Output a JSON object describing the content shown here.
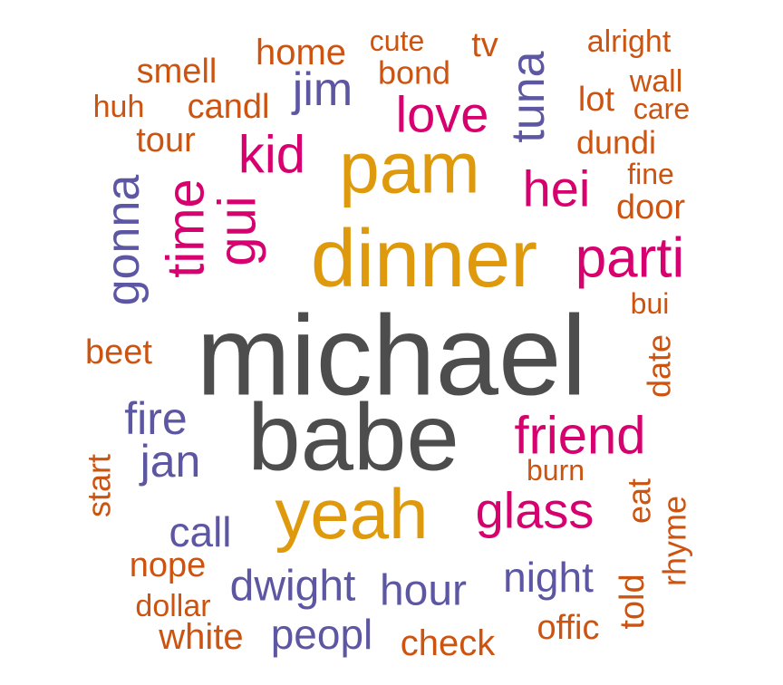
{
  "palette": {
    "grey": "#4d4d4d",
    "gold": "#de9a0c",
    "magenta": "#d6006f",
    "purple": "#5d57a3",
    "orange": "#cc5410"
  },
  "words": [
    {
      "text": "michael",
      "color": "grey"
    },
    {
      "text": "babe",
      "color": "grey"
    },
    {
      "text": "dinner",
      "color": "gold"
    },
    {
      "text": "pam",
      "color": "gold"
    },
    {
      "text": "yeah",
      "color": "gold"
    },
    {
      "text": "friend",
      "color": "magenta"
    },
    {
      "text": "glass",
      "color": "magenta"
    },
    {
      "text": "parti",
      "color": "magenta"
    },
    {
      "text": "love",
      "color": "magenta"
    },
    {
      "text": "hei",
      "color": "magenta"
    },
    {
      "text": "kid",
      "color": "magenta"
    },
    {
      "text": "gui",
      "color": "magenta"
    },
    {
      "text": "time",
      "color": "magenta"
    },
    {
      "text": "tuna",
      "color": "purple"
    },
    {
      "text": "jim",
      "color": "purple"
    },
    {
      "text": "gonna",
      "color": "purple"
    },
    {
      "text": "fire",
      "color": "purple"
    },
    {
      "text": "jan",
      "color": "purple"
    },
    {
      "text": "call",
      "color": "purple"
    },
    {
      "text": "dwight",
      "color": "purple"
    },
    {
      "text": "hour",
      "color": "purple"
    },
    {
      "text": "night",
      "color": "purple"
    },
    {
      "text": "peopl",
      "color": "purple"
    },
    {
      "text": "home",
      "color": "orange"
    },
    {
      "text": "cute",
      "color": "orange"
    },
    {
      "text": "tv",
      "color": "orange"
    },
    {
      "text": "alright",
      "color": "orange"
    },
    {
      "text": "smell",
      "color": "orange"
    },
    {
      "text": "bond",
      "color": "orange"
    },
    {
      "text": "wall",
      "color": "orange"
    },
    {
      "text": "lot",
      "color": "orange"
    },
    {
      "text": "huh",
      "color": "orange"
    },
    {
      "text": "candl",
      "color": "orange"
    },
    {
      "text": "care",
      "color": "orange"
    },
    {
      "text": "tour",
      "color": "orange"
    },
    {
      "text": "dundi",
      "color": "orange"
    },
    {
      "text": "fine",
      "color": "orange"
    },
    {
      "text": "door",
      "color": "orange"
    },
    {
      "text": "bui",
      "color": "orange"
    },
    {
      "text": "beet",
      "color": "orange"
    },
    {
      "text": "date",
      "color": "orange"
    },
    {
      "text": "start",
      "color": "orange"
    },
    {
      "text": "burn",
      "color": "orange"
    },
    {
      "text": "eat",
      "color": "orange"
    },
    {
      "text": "rhyme",
      "color": "orange"
    },
    {
      "text": "nope",
      "color": "orange"
    },
    {
      "text": "told",
      "color": "orange"
    },
    {
      "text": "dollar",
      "color": "orange"
    },
    {
      "text": "offic",
      "color": "orange"
    },
    {
      "text": "white",
      "color": "orange"
    },
    {
      "text": "check",
      "color": "orange"
    }
  ]
}
